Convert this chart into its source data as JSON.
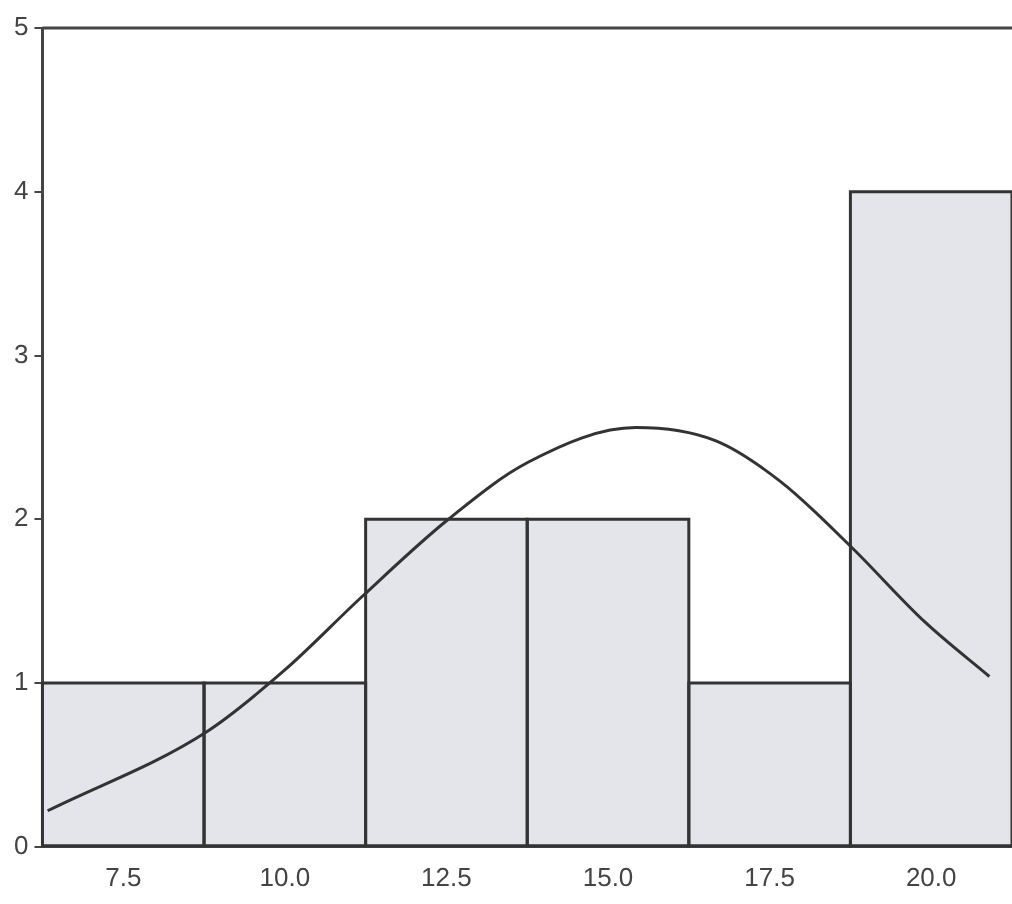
{
  "chart_data": {
    "type": "histogram",
    "xlim": [
      6.25,
      21.25
    ],
    "ylim": [
      0,
      5
    ],
    "xticks": [
      7.5,
      {
        "value": 10,
        "label": "10.0"
      },
      12.5,
      {
        "value": 15,
        "label": "15.0"
      },
      17.5,
      {
        "value": 20,
        "label": "20.0"
      }
    ],
    "yticks": [
      0,
      1,
      2,
      3,
      4,
      5
    ],
    "grid": false,
    "legend": false,
    "series": [
      {
        "color": "#e3e5ea",
        "bins": [
          6.25,
          8.75,
          11.25,
          13.75,
          16.25,
          18.75,
          21.25
        ],
        "values": [
          1,
          1,
          2,
          2,
          1,
          4
        ]
      },
      {
        "type": "line",
        "color": "#333333",
        "x": [
          6.33,
          8.78,
          10.0,
          11.2,
          12.53,
          13.77,
          15.43,
          16.66,
          17.67,
          18.74,
          19.91,
          20.9
        ],
        "values": [
          0.22,
          0.7,
          1.08,
          1.53,
          2.0,
          2.35,
          2.56,
          2.48,
          2.23,
          1.84,
          1.37,
          1.04
        ]
      }
    ]
  }
}
